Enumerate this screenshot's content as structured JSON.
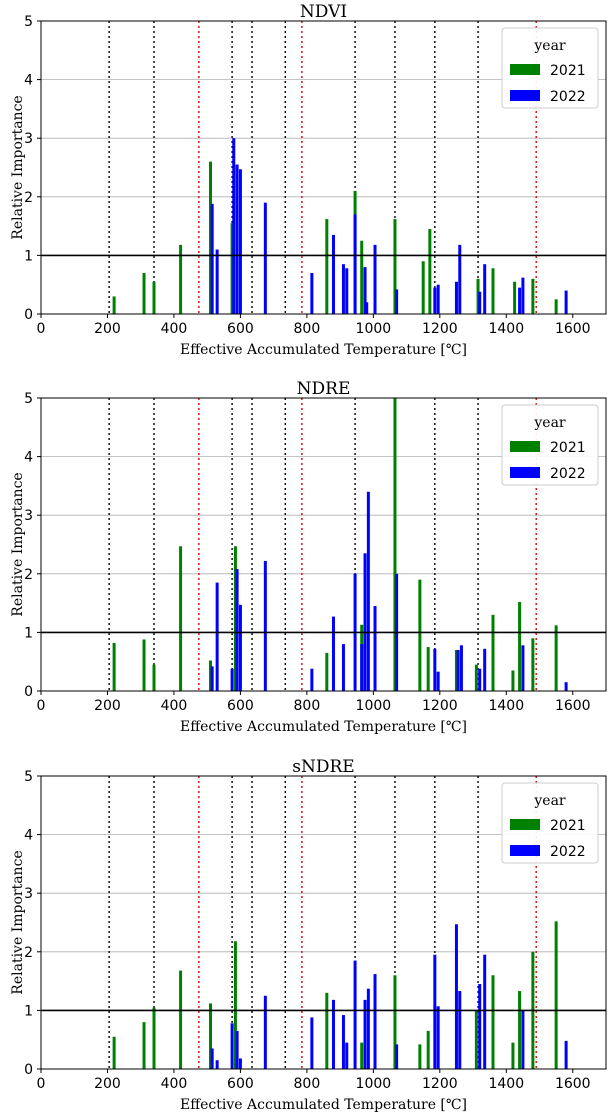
{
  "chart_data": [
    {
      "type": "bar",
      "title": "NDVI",
      "xlabel": "Effective Accumulated Temperature [℃]",
      "ylabel": "Relative Importance",
      "xlim": [
        0,
        1700
      ],
      "ylim": [
        0,
        5
      ],
      "xticks": [
        0,
        200,
        400,
        600,
        800,
        1000,
        1200,
        1400,
        1600
      ],
      "yticks": [
        0,
        1,
        2,
        3,
        4,
        5
      ],
      "grid": "horizontal",
      "reference_line": 1,
      "black_dotted_lines": [
        205,
        340,
        575,
        635,
        735,
        945,
        1065,
        1185,
        1315
      ],
      "red_dotted_lines": [
        475,
        785,
        1490
      ],
      "legend": {
        "title": "year",
        "position": "top-right"
      },
      "series": [
        {
          "name": "2021",
          "color": "#008000",
          "points": [
            [
              220,
              0.3
            ],
            [
              310,
              0.7
            ],
            [
              340,
              0.55
            ],
            [
              420,
              1.18
            ],
            [
              510,
              2.6
            ],
            [
              575,
              1.55
            ],
            [
              860,
              1.62
            ],
            [
              945,
              2.1
            ],
            [
              965,
              1.25
            ],
            [
              1065,
              1.62
            ],
            [
              1150,
              0.9
            ],
            [
              1170,
              1.45
            ],
            [
              1315,
              0.6
            ],
            [
              1360,
              0.78
            ],
            [
              1425,
              0.55
            ],
            [
              1480,
              0.6
            ],
            [
              1550,
              0.25
            ]
          ]
        },
        {
          "name": "2022",
          "color": "#0000ff",
          "points": [
            [
              515,
              1.88
            ],
            [
              530,
              1.1
            ],
            [
              580,
              3.0
            ],
            [
              590,
              2.55
            ],
            [
              600,
              2.47
            ],
            [
              675,
              1.9
            ],
            [
              815,
              0.7
            ],
            [
              880,
              1.35
            ],
            [
              910,
              0.85
            ],
            [
              920,
              0.78
            ],
            [
              945,
              1.7
            ],
            [
              975,
              0.8
            ],
            [
              980,
              0.2
            ],
            [
              1005,
              1.18
            ],
            [
              1070,
              0.42
            ],
            [
              1185,
              0.45
            ],
            [
              1195,
              0.5
            ],
            [
              1250,
              0.55
            ],
            [
              1260,
              1.18
            ],
            [
              1320,
              0.38
            ],
            [
              1335,
              0.85
            ],
            [
              1440,
              0.45
            ],
            [
              1450,
              0.62
            ],
            [
              1580,
              0.4
            ]
          ]
        }
      ]
    },
    {
      "type": "bar",
      "title": "NDRE",
      "xlabel": "Effective Accumulated Temperature [℃]",
      "ylabel": "Relative Importance",
      "xlim": [
        0,
        1700
      ],
      "ylim": [
        0,
        5
      ],
      "xticks": [
        0,
        200,
        400,
        600,
        800,
        1000,
        1200,
        1400,
        1600
      ],
      "yticks": [
        0,
        1,
        2,
        3,
        4,
        5
      ],
      "grid": "horizontal",
      "reference_line": 1,
      "black_dotted_lines": [
        205,
        340,
        575,
        635,
        735,
        945,
        1065,
        1185,
        1315
      ],
      "red_dotted_lines": [
        475,
        785,
        1490
      ],
      "legend": {
        "title": "year",
        "position": "top-right"
      },
      "series": [
        {
          "name": "2021",
          "color": "#008000",
          "points": [
            [
              220,
              0.82
            ],
            [
              310,
              0.88
            ],
            [
              340,
              0.45
            ],
            [
              420,
              2.47
            ],
            [
              510,
              0.52
            ],
            [
              585,
              2.47
            ],
            [
              860,
              0.65
            ],
            [
              965,
              1.13
            ],
            [
              1065,
              5.0
            ],
            [
              1140,
              1.9
            ],
            [
              1165,
              0.75
            ],
            [
              1250,
              0.7
            ],
            [
              1310,
              0.45
            ],
            [
              1360,
              1.3
            ],
            [
              1420,
              0.35
            ],
            [
              1440,
              1.52
            ],
            [
              1480,
              0.9
            ],
            [
              1550,
              1.12
            ]
          ]
        },
        {
          "name": "2022",
          "color": "#0000ff",
          "points": [
            [
              515,
              0.42
            ],
            [
              530,
              1.85
            ],
            [
              575,
              0.38
            ],
            [
              590,
              2.08
            ],
            [
              600,
              1.47
            ],
            [
              675,
              2.22
            ],
            [
              815,
              0.38
            ],
            [
              880,
              1.27
            ],
            [
              910,
              0.8
            ],
            [
              945,
              2.0
            ],
            [
              965,
              0.8
            ],
            [
              975,
              2.35
            ],
            [
              985,
              3.4
            ],
            [
              1005,
              1.45
            ],
            [
              1070,
              2.0
            ],
            [
              1185,
              0.72
            ],
            [
              1195,
              0.33
            ],
            [
              1255,
              0.7
            ],
            [
              1265,
              0.78
            ],
            [
              1320,
              0.38
            ],
            [
              1335,
              0.72
            ],
            [
              1450,
              0.78
            ],
            [
              1580,
              0.15
            ]
          ]
        }
      ]
    },
    {
      "type": "bar",
      "title": "sNDRE",
      "xlabel": "Effective Accumulated Temperature [℃]",
      "ylabel": "Relative Importance",
      "xlim": [
        0,
        1700
      ],
      "ylim": [
        0,
        5
      ],
      "xticks": [
        0,
        200,
        400,
        600,
        800,
        1000,
        1200,
        1400,
        1600
      ],
      "yticks": [
        0,
        1,
        2,
        3,
        4,
        5
      ],
      "grid": "horizontal",
      "reference_line": 1,
      "black_dotted_lines": [
        205,
        340,
        575,
        635,
        735,
        945,
        1065,
        1185,
        1315
      ],
      "red_dotted_lines": [
        475,
        785,
        1490
      ],
      "legend": {
        "title": "year",
        "position": "top-right"
      },
      "series": [
        {
          "name": "2021",
          "color": "#008000",
          "points": [
            [
              220,
              0.55
            ],
            [
              310,
              0.8
            ],
            [
              340,
              1.05
            ],
            [
              420,
              1.68
            ],
            [
              510,
              1.12
            ],
            [
              585,
              2.18
            ],
            [
              860,
              1.3
            ],
            [
              965,
              0.45
            ],
            [
              1065,
              1.6
            ],
            [
              1140,
              0.42
            ],
            [
              1165,
              0.65
            ],
            [
              1310,
              1.0
            ],
            [
              1360,
              1.6
            ],
            [
              1420,
              0.45
            ],
            [
              1440,
              1.33
            ],
            [
              1480,
              2.0
            ],
            [
              1550,
              2.52
            ]
          ]
        },
        {
          "name": "2022",
          "color": "#0000ff",
          "points": [
            [
              515,
              0.35
            ],
            [
              530,
              0.15
            ],
            [
              575,
              0.78
            ],
            [
              590,
              0.65
            ],
            [
              600,
              0.18
            ],
            [
              675,
              1.25
            ],
            [
              815,
              0.88
            ],
            [
              880,
              1.18
            ],
            [
              910,
              0.92
            ],
            [
              920,
              0.45
            ],
            [
              945,
              1.85
            ],
            [
              975,
              1.18
            ],
            [
              985,
              1.37
            ],
            [
              1005,
              1.62
            ],
            [
              1070,
              0.42
            ],
            [
              1185,
              1.95
            ],
            [
              1195,
              1.07
            ],
            [
              1250,
              2.47
            ],
            [
              1260,
              1.33
            ],
            [
              1320,
              1.45
            ],
            [
              1335,
              1.95
            ],
            [
              1450,
              1.0
            ],
            [
              1580,
              0.48
            ]
          ]
        }
      ]
    }
  ]
}
